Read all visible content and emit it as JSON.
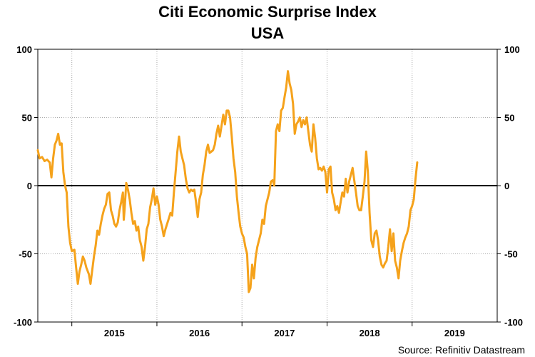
{
  "chart_data": {
    "type": "line",
    "title": "Citi Economic Surprise Index",
    "subtitle": "USA",
    "source": "Source: Refinitiv Datastream",
    "xlabel": "",
    "ylabel": "",
    "ylim": [
      -100,
      100
    ],
    "yticks": [
      100,
      50,
      0,
      -50,
      -100
    ],
    "xlim": [
      2014.2,
      2019.6
    ],
    "year_dividers": [
      2014.6,
      2015.6,
      2016.6,
      2017.6,
      2018.6
    ],
    "xticks": [
      {
        "label": "2015",
        "x": 2015.1
      },
      {
        "label": "2016",
        "x": 2016.1
      },
      {
        "label": "2017",
        "x": 2017.1
      },
      {
        "label": "2018",
        "x": 2018.1
      },
      {
        "label": "2019",
        "x": 2019.1
      }
    ],
    "grid": true,
    "line_color": "#f5a21b",
    "series": [
      {
        "name": "",
        "points": [
          [
            2014.2,
            26
          ],
          [
            2014.22,
            20
          ],
          [
            2014.25,
            21
          ],
          [
            2014.28,
            18
          ],
          [
            2014.31,
            19
          ],
          [
            2014.34,
            17
          ],
          [
            2014.36,
            6
          ],
          [
            2014.38,
            20
          ],
          [
            2014.4,
            30
          ],
          [
            2014.42,
            33
          ],
          [
            2014.44,
            38
          ],
          [
            2014.46,
            30
          ],
          [
            2014.48,
            31
          ],
          [
            2014.5,
            10
          ],
          [
            2014.52,
            0
          ],
          [
            2014.54,
            -5
          ],
          [
            2014.56,
            -30
          ],
          [
            2014.58,
            -42
          ],
          [
            2014.6,
            -48
          ],
          [
            2014.63,
            -47
          ],
          [
            2014.65,
            -60
          ],
          [
            2014.67,
            -72
          ],
          [
            2014.69,
            -63
          ],
          [
            2014.71,
            -58
          ],
          [
            2014.73,
            -52
          ],
          [
            2014.75,
            -55
          ],
          [
            2014.77,
            -60
          ],
          [
            2014.8,
            -65
          ],
          [
            2014.82,
            -72
          ],
          [
            2014.84,
            -62
          ],
          [
            2014.86,
            -52
          ],
          [
            2014.88,
            -44
          ],
          [
            2014.9,
            -33
          ],
          [
            2014.92,
            -36
          ],
          [
            2014.94,
            -28
          ],
          [
            2014.96,
            -22
          ],
          [
            2014.98,
            -17
          ],
          [
            2015.0,
            -14
          ],
          [
            2015.02,
            -6
          ],
          [
            2015.04,
            -5
          ],
          [
            2015.06,
            -18
          ],
          [
            2015.08,
            -22
          ],
          [
            2015.1,
            -28
          ],
          [
            2015.12,
            -30
          ],
          [
            2015.14,
            -27
          ],
          [
            2015.16,
            -18
          ],
          [
            2015.18,
            -12
          ],
          [
            2015.2,
            -5
          ],
          [
            2015.21,
            -25
          ],
          [
            2015.22,
            -18
          ],
          [
            2015.24,
            2
          ],
          [
            2015.26,
            -3
          ],
          [
            2015.28,
            -10
          ],
          [
            2015.3,
            -20
          ],
          [
            2015.32,
            -28
          ],
          [
            2015.34,
            -26
          ],
          [
            2015.36,
            -33
          ],
          [
            2015.38,
            -30
          ],
          [
            2015.4,
            -40
          ],
          [
            2015.42,
            -45
          ],
          [
            2015.44,
            -55
          ],
          [
            2015.46,
            -45
          ],
          [
            2015.48,
            -32
          ],
          [
            2015.5,
            -28
          ],
          [
            2015.52,
            -16
          ],
          [
            2015.54,
            -10
          ],
          [
            2015.56,
            -2
          ],
          [
            2015.58,
            -14
          ],
          [
            2015.6,
            -8
          ],
          [
            2015.62,
            -14
          ],
          [
            2015.64,
            -25
          ],
          [
            2015.66,
            -30
          ],
          [
            2015.68,
            -37
          ],
          [
            2015.7,
            -32
          ],
          [
            2015.72,
            -28
          ],
          [
            2015.74,
            -24
          ],
          [
            2015.76,
            -20
          ],
          [
            2015.78,
            -22
          ],
          [
            2015.8,
            -5
          ],
          [
            2015.82,
            10
          ],
          [
            2015.84,
            25
          ],
          [
            2015.86,
            36
          ],
          [
            2015.88,
            25
          ],
          [
            2015.9,
            20
          ],
          [
            2015.92,
            15
          ],
          [
            2015.94,
            5
          ],
          [
            2015.96,
            -2
          ],
          [
            2015.98,
            -5
          ],
          [
            2016.0,
            -3
          ],
          [
            2016.02,
            -4
          ],
          [
            2016.04,
            -3
          ],
          [
            2016.06,
            -12
          ],
          [
            2016.08,
            -23
          ],
          [
            2016.1,
            -10
          ],
          [
            2016.12,
            -5
          ],
          [
            2016.14,
            8
          ],
          [
            2016.16,
            15
          ],
          [
            2016.18,
            25
          ],
          [
            2016.2,
            30
          ],
          [
            2016.22,
            24
          ],
          [
            2016.24,
            25
          ],
          [
            2016.26,
            26
          ],
          [
            2016.28,
            30
          ],
          [
            2016.3,
            38
          ],
          [
            2016.32,
            44
          ],
          [
            2016.34,
            36
          ],
          [
            2016.36,
            44
          ],
          [
            2016.38,
            52
          ],
          [
            2016.4,
            45
          ],
          [
            2016.42,
            55
          ],
          [
            2016.44,
            55
          ],
          [
            2016.46,
            50
          ],
          [
            2016.48,
            36
          ],
          [
            2016.5,
            20
          ],
          [
            2016.52,
            10
          ],
          [
            2016.54,
            -8
          ],
          [
            2016.56,
            -20
          ],
          [
            2016.58,
            -30
          ],
          [
            2016.6,
            -35
          ],
          [
            2016.62,
            -38
          ],
          [
            2016.64,
            -45
          ],
          [
            2016.66,
            -50
          ],
          [
            2016.68,
            -78
          ],
          [
            2016.7,
            -75
          ],
          [
            2016.72,
            -58
          ],
          [
            2016.74,
            -68
          ],
          [
            2016.76,
            -53
          ],
          [
            2016.78,
            -45
          ],
          [
            2016.8,
            -40
          ],
          [
            2016.82,
            -35
          ],
          [
            2016.84,
            -25
          ],
          [
            2016.86,
            -28
          ],
          [
            2016.88,
            -15
          ],
          [
            2016.9,
            -10
          ],
          [
            2016.92,
            -5
          ],
          [
            2016.94,
            3
          ],
          [
            2016.96,
            4
          ],
          [
            2016.98,
            0
          ],
          [
            2017.0,
            40
          ],
          [
            2017.02,
            45
          ],
          [
            2017.04,
            40
          ],
          [
            2017.06,
            55
          ],
          [
            2017.08,
            57
          ],
          [
            2017.1,
            65
          ],
          [
            2017.12,
            72
          ],
          [
            2017.14,
            84
          ],
          [
            2017.16,
            75
          ],
          [
            2017.18,
            70
          ],
          [
            2017.2,
            60
          ],
          [
            2017.22,
            38
          ],
          [
            2017.24,
            45
          ],
          [
            2017.26,
            47
          ],
          [
            2017.28,
            50
          ],
          [
            2017.3,
            43
          ],
          [
            2017.32,
            48
          ],
          [
            2017.34,
            45
          ],
          [
            2017.36,
            50
          ],
          [
            2017.38,
            40
          ],
          [
            2017.4,
            30
          ],
          [
            2017.42,
            25
          ],
          [
            2017.44,
            45
          ],
          [
            2017.46,
            35
          ],
          [
            2017.48,
            20
          ],
          [
            2017.5,
            12
          ],
          [
            2017.52,
            13
          ],
          [
            2017.54,
            11
          ],
          [
            2017.56,
            14
          ],
          [
            2017.58,
            10
          ],
          [
            2017.6,
            -5
          ],
          [
            2017.62,
            12
          ],
          [
            2017.64,
            14
          ],
          [
            2017.66,
            -5
          ],
          [
            2017.68,
            -10
          ],
          [
            2017.7,
            -18
          ],
          [
            2017.72,
            -15
          ],
          [
            2017.74,
            -20
          ],
          [
            2017.76,
            -12
          ],
          [
            2017.78,
            -5
          ],
          [
            2017.8,
            -8
          ],
          [
            2017.82,
            5
          ],
          [
            2017.84,
            -5
          ],
          [
            2017.86,
            3
          ],
          [
            2017.88,
            8
          ],
          [
            2017.9,
            13
          ],
          [
            2017.92,
            4
          ],
          [
            2017.94,
            -5
          ],
          [
            2017.96,
            -15
          ],
          [
            2017.98,
            -18
          ],
          [
            2018.0,
            -18
          ],
          [
            2018.02,
            -8
          ],
          [
            2018.04,
            3
          ],
          [
            2018.06,
            25
          ],
          [
            2018.08,
            10
          ],
          [
            2018.1,
            -20
          ],
          [
            2018.12,
            -40
          ],
          [
            2018.14,
            -45
          ],
          [
            2018.16,
            -35
          ],
          [
            2018.18,
            -33
          ],
          [
            2018.2,
            -40
          ],
          [
            2018.22,
            -52
          ],
          [
            2018.24,
            -58
          ],
          [
            2018.26,
            -60
          ],
          [
            2018.28,
            -57
          ],
          [
            2018.3,
            -55
          ],
          [
            2018.32,
            -45
          ],
          [
            2018.34,
            -32
          ],
          [
            2018.36,
            -48
          ],
          [
            2018.38,
            -35
          ],
          [
            2018.4,
            -55
          ],
          [
            2018.42,
            -60
          ],
          [
            2018.44,
            -68
          ],
          [
            2018.46,
            -55
          ],
          [
            2018.48,
            -48
          ],
          [
            2018.5,
            -42
          ],
          [
            2018.52,
            -38
          ],
          [
            2018.54,
            -35
          ],
          [
            2018.56,
            -30
          ],
          [
            2018.58,
            -18
          ],
          [
            2018.6,
            -15
          ],
          [
            2018.62,
            -10
          ],
          [
            2018.64,
            5
          ],
          [
            2018.66,
            17
          ]
        ]
      }
    ]
  }
}
